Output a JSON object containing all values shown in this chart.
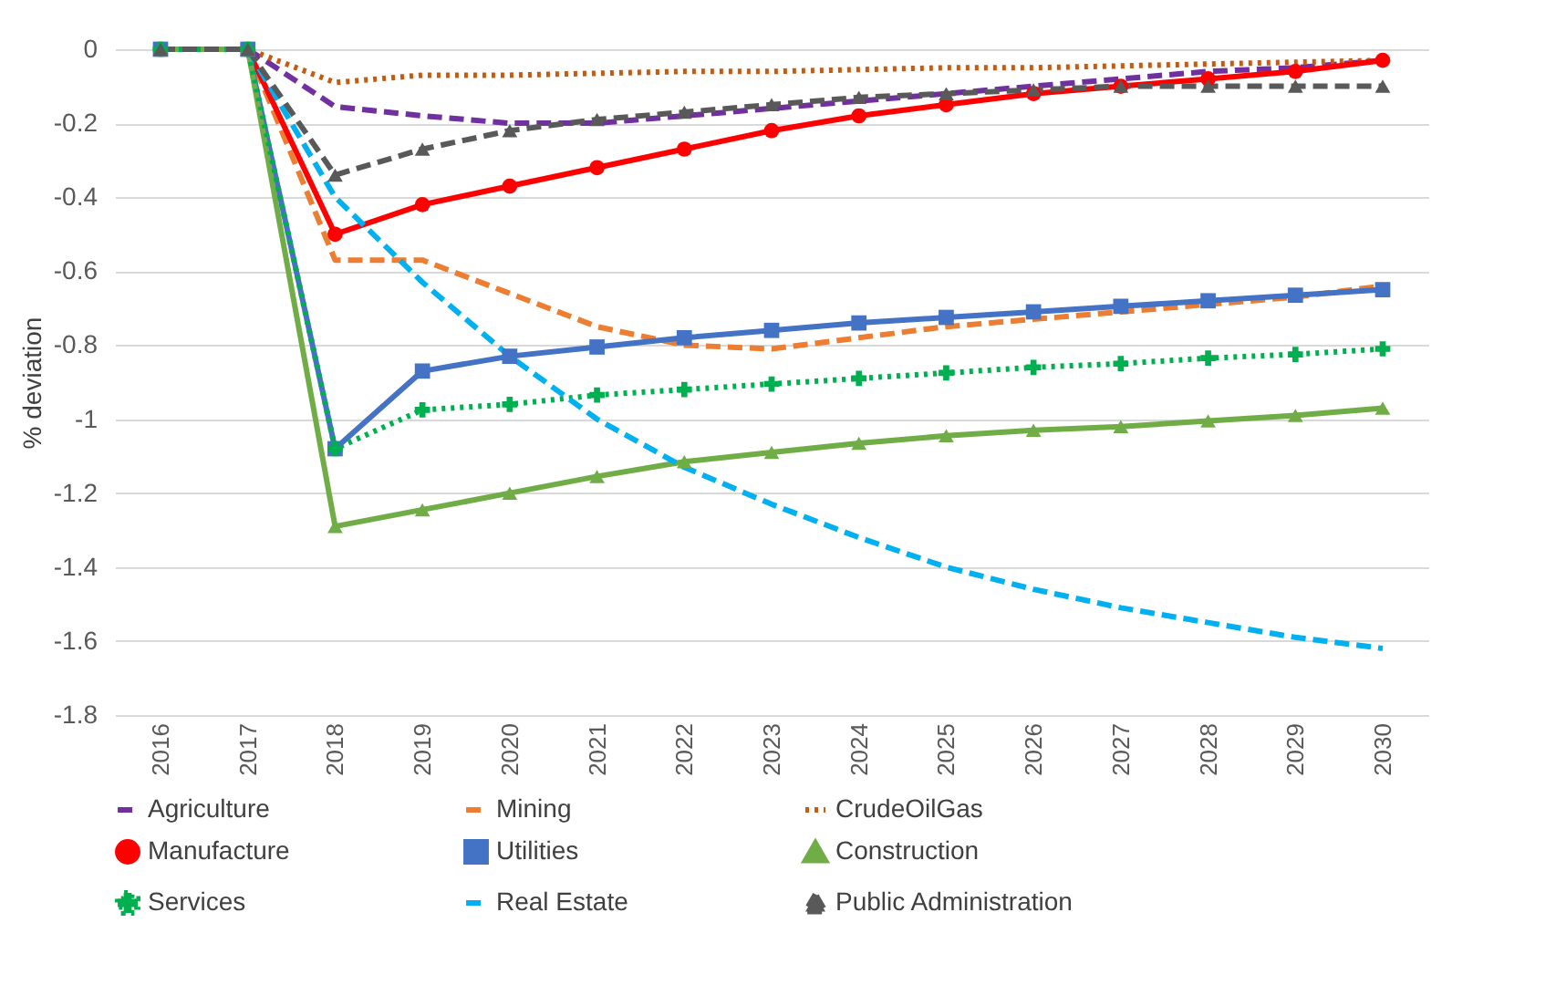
{
  "chart_data": {
    "type": "line",
    "ylabel": "% deviation",
    "categories": [
      "2016",
      "2017",
      "2018",
      "2019",
      "2020",
      "2021",
      "2022",
      "2023",
      "2024",
      "2025",
      "2026",
      "2027",
      "2028",
      "2029",
      "2030"
    ],
    "ylim": [
      -1.8,
      0
    ],
    "yticks": [
      -1.8,
      -1.6,
      -1.4,
      -1.2,
      -1,
      -0.8,
      -0.6,
      -0.4,
      -0.2,
      0
    ],
    "grid": "y",
    "legend": "bottom",
    "series": [
      {
        "name": "Agriculture",
        "color": "#7030a0",
        "line_style": "dashed",
        "values": [
          0,
          0,
          -0.155,
          -0.18,
          -0.2,
          -0.2,
          -0.18,
          -0.16,
          -0.14,
          -0.12,
          -0.1,
          -0.08,
          -0.06,
          -0.05,
          -0.03
        ]
      },
      {
        "name": "Mining",
        "color": "#ed7d31",
        "line_style": "dashed",
        "values": [
          0,
          0,
          -0.57,
          -0.57,
          -0.66,
          -0.75,
          -0.8,
          -0.81,
          -0.78,
          -0.75,
          -0.73,
          -0.71,
          -0.69,
          -0.67,
          -0.64
        ]
      },
      {
        "name": "CrudeOilGas",
        "color": "#c55a11",
        "line_style": "dotted",
        "values": [
          0,
          0,
          -0.09,
          -0.07,
          -0.07,
          -0.065,
          -0.06,
          -0.06,
          -0.055,
          -0.05,
          -0.05,
          -0.045,
          -0.04,
          -0.035,
          -0.03
        ]
      },
      {
        "name": "Manufacture",
        "color": "#ff0000",
        "line_style": "solid",
        "marker": "circle",
        "values": [
          0,
          0,
          -0.5,
          -0.42,
          -0.37,
          -0.32,
          -0.27,
          -0.22,
          -0.18,
          -0.15,
          -0.12,
          -0.1,
          -0.08,
          -0.06,
          -0.03
        ]
      },
      {
        "name": "Utilities",
        "color": "#4472c4",
        "line_style": "solid",
        "marker": "square",
        "values": [
          0,
          0,
          -1.08,
          -0.87,
          -0.83,
          -0.805,
          -0.78,
          -0.76,
          -0.74,
          -0.725,
          -0.71,
          -0.695,
          -0.68,
          -0.665,
          -0.65
        ]
      },
      {
        "name": "Construction",
        "color": "#70ad47",
        "line_style": "solid",
        "marker": "triangle",
        "values": [
          0,
          0,
          -1.29,
          -1.245,
          -1.2,
          -1.155,
          -1.115,
          -1.09,
          -1.065,
          -1.045,
          -1.03,
          -1.02,
          -1.005,
          -0.99,
          -0.97
        ]
      },
      {
        "name": "Services",
        "color": "#00b050",
        "line_style": "dotted",
        "marker": "cross",
        "values": [
          0,
          0,
          -1.08,
          -0.975,
          -0.96,
          -0.935,
          -0.92,
          -0.905,
          -0.89,
          -0.875,
          -0.86,
          -0.85,
          -0.835,
          -0.825,
          -0.81
        ]
      },
      {
        "name": "Real Estate",
        "color": "#00b0f0",
        "line_style": "dashed",
        "values": [
          0,
          0,
          -0.4,
          -0.63,
          -0.83,
          -1.0,
          -1.13,
          -1.23,
          -1.32,
          -1.4,
          -1.46,
          -1.51,
          -1.55,
          -1.59,
          -1.62
        ]
      },
      {
        "name": "Public Administration",
        "color": "#595959",
        "line_style": "dashed",
        "marker": "triangle",
        "values": [
          0,
          0,
          -0.34,
          -0.27,
          -0.22,
          -0.19,
          -0.17,
          -0.15,
          -0.13,
          -0.12,
          -0.11,
          -0.1,
          -0.1,
          -0.1,
          -0.1
        ]
      }
    ]
  }
}
